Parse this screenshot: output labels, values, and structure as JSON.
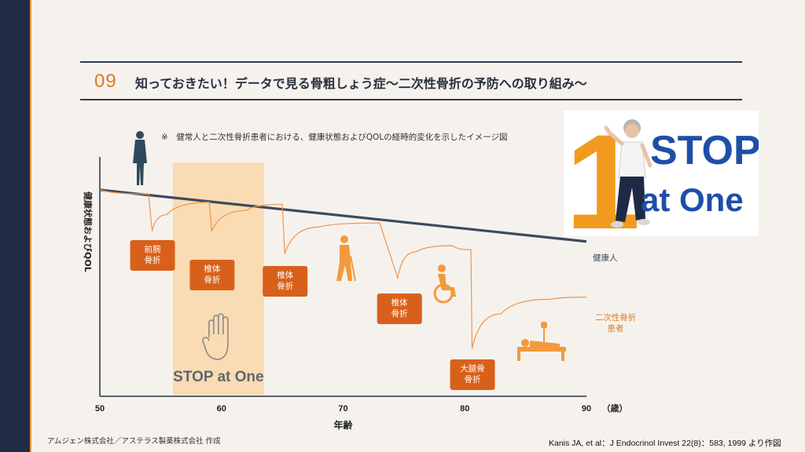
{
  "header": {
    "number": "09",
    "title": "知っておきたい！データで見る骨粗しょう症〜二次性骨折の予防への取り組み〜"
  },
  "note": "※　健常人と二次性骨折患者における、健康状態およびQOLの経時的変化を示したイメージ図",
  "logo": {
    "digit": "1",
    "line1": "STOP",
    "line2": "at One",
    "icon": "elderly-woman-walking-photo"
  },
  "chart_data": {
    "type": "line",
    "title": "",
    "xlabel": "年齢",
    "xunit": "（歳）",
    "ylabel": "健康状態およびQOL",
    "xlim": [
      50,
      90
    ],
    "x_ticks": [
      "50",
      "60",
      "70",
      "80",
      "90"
    ],
    "series": [
      {
        "name": "健常人",
        "color": "#3d4a5e",
        "x": [
          50,
          90
        ],
        "y": [
          100,
          75
        ]
      },
      {
        "name": "二次性骨折患者",
        "color": "#f0954a",
        "x": [
          50,
          54,
          54.3,
          55.5,
          59,
          59.2,
          62,
          65,
          65.2,
          68,
          73,
          74.5,
          74.6,
          76,
          79,
          80.5,
          80.6,
          83,
          87,
          90
        ],
        "y": [
          100,
          98,
          80,
          88,
          94,
          80,
          90,
          93,
          69,
          82,
          84,
          57,
          60,
          70,
          73,
          71,
          23,
          40,
          47,
          48
        ]
      }
    ],
    "highlight_band": {
      "x_range": [
        56,
        63.5
      ],
      "label": "STOP at One",
      "icon": "raised-hand-icon",
      "color": "#f9d8a8"
    },
    "fracture_events": [
      {
        "x": 54.3,
        "label_lines": [
          "前腕",
          "骨折"
        ]
      },
      {
        "x": 59.2,
        "label_lines": [
          "椎体",
          "骨折"
        ]
      },
      {
        "x": 65.2,
        "label_lines": [
          "椎体",
          "骨折"
        ]
      },
      {
        "x": 74.6,
        "label_lines": [
          "椎体",
          "骨折"
        ]
      },
      {
        "x": 80.6,
        "label_lines": [
          "大腿骨",
          "骨折"
        ]
      }
    ],
    "series_labels": {
      "healthy": [
        "健康人"
      ],
      "patient": [
        "二次性骨折",
        "患者"
      ]
    },
    "icons": [
      "standing-woman-icon",
      "walking-with-cane-icon",
      "wheelchair-icon",
      "hospital-bed-icon"
    ],
    "colors": {
      "accent": "#e07a1e",
      "event_box": "#d9601a",
      "healthy_line": "#3d4a5e",
      "patient_line": "#f0954a",
      "axis": "#2a2f3f"
    }
  },
  "footer": {
    "credit": "アムジェン株式会社／アステラス製薬株式会社 作成",
    "citation": "Kanis JA, et al：J Endocrinol Invest 22(8)：583, 1999 より作図"
  }
}
